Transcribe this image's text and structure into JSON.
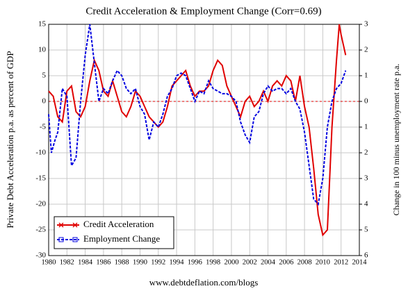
{
  "chart_data": {
    "type": "line",
    "title": "Credit Acceleration & Employment Change (Corr=0.69)",
    "ylabel": "Private Debt Acceleration p.a. as percent of GDP",
    "y2label": "Change in 100 minus unemployment rate p.a.",
    "footer": "www.debtdeflation.com/blogs",
    "xlim": [
      1980,
      2014
    ],
    "xticks": [
      1980,
      1982,
      1984,
      1986,
      1988,
      1990,
      1992,
      1994,
      1996,
      1998,
      2000,
      2002,
      2004,
      2006,
      2008,
      2010,
      2012,
      2014
    ],
    "ylim": [
      -30,
      15
    ],
    "yticks": [
      -30,
      -25,
      -20,
      -15,
      -10,
      -5,
      0,
      5,
      10,
      15
    ],
    "y2lim": [
      -6,
      3
    ],
    "y2ticks": [
      {
        "value": -6,
        "label": "6"
      },
      {
        "value": -5,
        "label": "5"
      },
      {
        "value": -4,
        "label": "4"
      },
      {
        "value": -3,
        "label": "3"
      },
      {
        "value": -2,
        "label": "2"
      },
      {
        "value": -1,
        "label": "1"
      },
      0,
      1,
      2,
      3
    ],
    "grid": true,
    "legend": "lower left",
    "series": [
      {
        "name": "Credit Acceleration",
        "color": "#e00000",
        "axis": "y",
        "x": [
          1980,
          1980.5,
          1981,
          1981.5,
          1982,
          1982.5,
          1983,
          1983.5,
          1984,
          1984.5,
          1985,
          1985.5,
          1986,
          1986.5,
          1987,
          1987.5,
          1988,
          1988.5,
          1989,
          1989.5,
          1990,
          1990.5,
          1991,
          1991.5,
          1992,
          1992.5,
          1993,
          1993.5,
          1994,
          1994.5,
          1995,
          1995.5,
          1996,
          1996.5,
          1997,
          1997.5,
          1998,
          1998.5,
          1999,
          1999.5,
          2000,
          2000.5,
          2001,
          2001.5,
          2002,
          2002.5,
          2003,
          2003.5,
          2004,
          2004.5,
          2005,
          2005.5,
          2006,
          2006.5,
          2007,
          2007.5,
          2008,
          2008.5,
          2009,
          2009.5,
          2010,
          2010.5,
          2011,
          2011.5,
          2011.8,
          2012,
          2012.5
        ],
        "values": [
          2,
          1,
          -3,
          -4,
          2,
          3,
          -2,
          -3,
          -1,
          4,
          8,
          6,
          2,
          1,
          4,
          1,
          -2,
          -3,
          -1,
          2,
          1,
          -1,
          -3,
          -4,
          -5,
          -4,
          -1,
          3,
          4,
          5,
          6,
          3,
          1,
          2,
          2,
          3,
          6,
          8,
          7,
          3,
          1,
          -1,
          -3,
          0,
          1,
          -1,
          0,
          2,
          0,
          3,
          4,
          3,
          5,
          4,
          0,
          5,
          -1,
          -5,
          -13,
          -22,
          -26,
          -25,
          -5,
          8,
          15,
          13,
          9
        ]
      },
      {
        "name": "Employment Change",
        "color": "#0000e0",
        "axis": "y2",
        "x": [
          1980,
          1980.3,
          1980.7,
          1981,
          1981.5,
          1982,
          1982.5,
          1983,
          1983.5,
          1984,
          1984.5,
          1985,
          1985.5,
          1986,
          1986.5,
          1987,
          1987.5,
          1988,
          1988.5,
          1989,
          1989.5,
          1990,
          1990.5,
          1991,
          1991.5,
          1992,
          1992.5,
          1993,
          1993.5,
          1994,
          1994.5,
          1995,
          1995.5,
          1996,
          1996.5,
          1997,
          1997.5,
          1998,
          1998.5,
          1999,
          1999.5,
          2000,
          2000.5,
          2001,
          2001.5,
          2002,
          2002.5,
          2003,
          2003.5,
          2004,
          2004.5,
          2005,
          2005.5,
          2006,
          2006.5,
          2007,
          2007.5,
          2008,
          2008.5,
          2009,
          2009.5,
          2010,
          2010.5,
          2011,
          2011.5,
          2012,
          2012.5
        ],
        "values": [
          -0.5,
          -2,
          -1.5,
          -1.2,
          0.5,
          0.2,
          -2.5,
          -2.2,
          0,
          1.8,
          3,
          1.5,
          0,
          0.5,
          0.3,
          0.8,
          1.2,
          1,
          0.5,
          0.3,
          0.5,
          -0.2,
          -0.5,
          -1.5,
          -0.8,
          -1,
          -0.5,
          0.2,
          0.5,
          1,
          1.1,
          1,
          0.5,
          0,
          0.4,
          0.3,
          0.8,
          0.5,
          0.4,
          0.3,
          0.3,
          0.2,
          0,
          -0.8,
          -1.3,
          -1.6,
          -0.6,
          -0.4,
          0.3,
          0.6,
          0.4,
          0.5,
          0.5,
          0.3,
          0.5,
          0,
          -0.3,
          -1.2,
          -2.5,
          -3.8,
          -4,
          -3,
          -1,
          0,
          0.5,
          0.7,
          1.2
        ]
      }
    ]
  }
}
